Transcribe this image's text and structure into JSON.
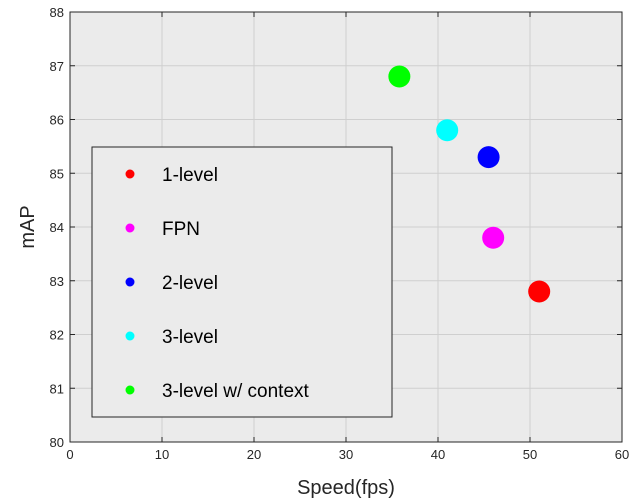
{
  "chart_data": {
    "type": "scatter",
    "xlabel": "Speed(fps)",
    "ylabel": "mAP",
    "xlim": [
      0,
      60
    ],
    "ylim": [
      80,
      88
    ],
    "xticks": [
      0,
      10,
      20,
      30,
      40,
      50,
      60
    ],
    "yticks": [
      80,
      81,
      82,
      83,
      84,
      85,
      86,
      87,
      88
    ],
    "grid": true,
    "legend_position": "lower-left",
    "background_color": "#ebebeb",
    "series": [
      {
        "name": "1-level",
        "color": "#ff0000",
        "points": [
          {
            "x": 51,
            "y": 82.8
          }
        ]
      },
      {
        "name": "FPN",
        "color": "#ff00ff",
        "points": [
          {
            "x": 46,
            "y": 83.8
          }
        ]
      },
      {
        "name": "2-level",
        "color": "#0000ff",
        "points": [
          {
            "x": 45.5,
            "y": 85.3
          }
        ]
      },
      {
        "name": "3-level",
        "color": "#00ffff",
        "points": [
          {
            "x": 41,
            "y": 85.8
          }
        ]
      },
      {
        "name": "3-level w/ context",
        "color": "#00ff00",
        "points": [
          {
            "x": 35.8,
            "y": 86.8
          }
        ]
      }
    ]
  }
}
